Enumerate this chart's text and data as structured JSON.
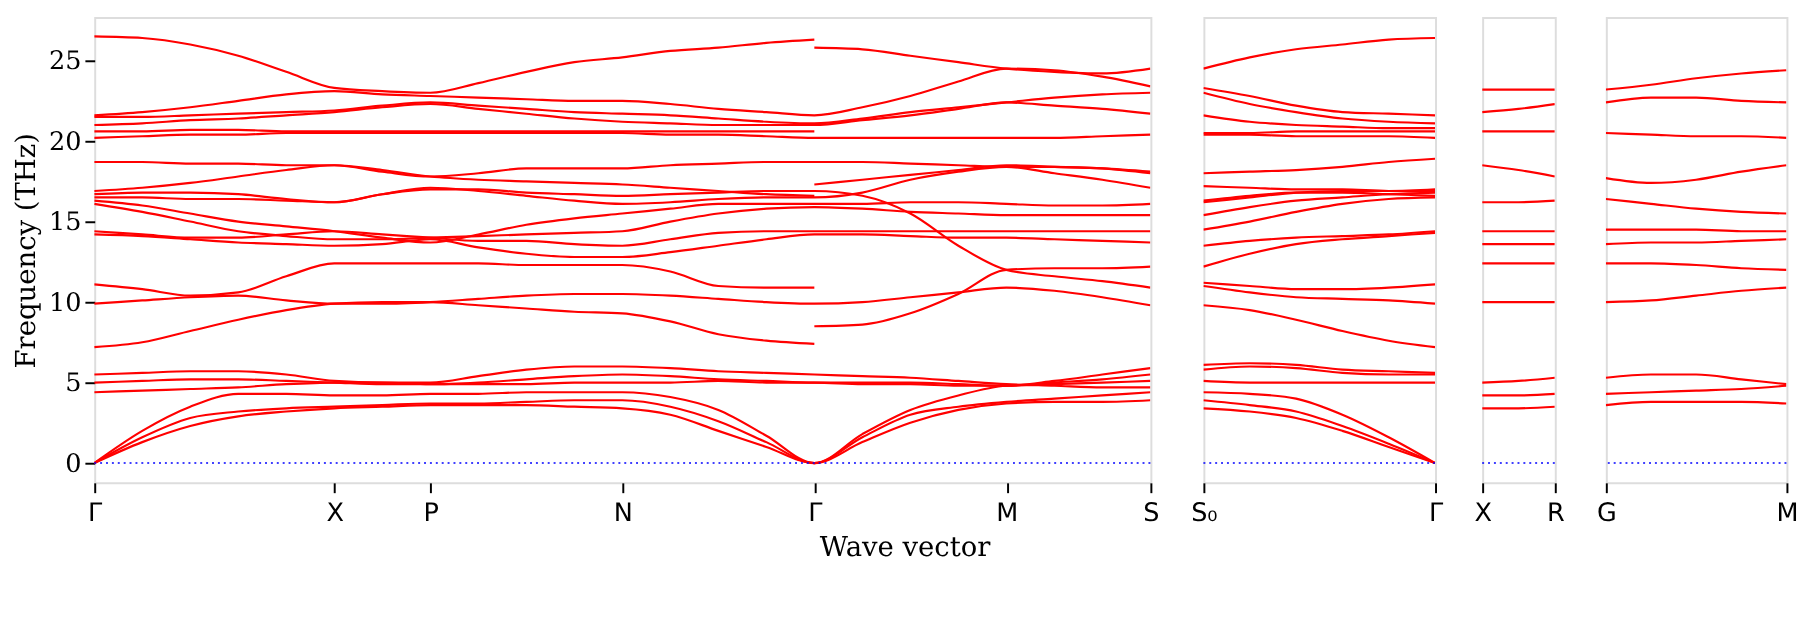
{
  "chart_data": [
    {
      "type": "line",
      "xlabel": "Wave vector",
      "ylabel": "Frequency (THz)",
      "ylim": [
        -1.2,
        27.7
      ],
      "yticks": [
        0,
        5,
        10,
        15,
        20,
        25
      ],
      "categories": [
        "Γ",
        null,
        null,
        null,
        null,
        "X",
        null,
        "P",
        null,
        null,
        null,
        "N",
        null,
        null,
        null,
        "Γ",
        null,
        null,
        null,
        "M",
        null,
        null,
        "S"
      ],
      "ref_lines": [
        {
          "axis": "y",
          "value": 0,
          "color": "#0000ff",
          "line_style": "dotted"
        }
      ],
      "series": [
        {
          "color": "#ff0000",
          "values": [
            0,
            1.3,
            2.3,
            2.9,
            3.2,
            3.4,
            3.5,
            3.6,
            3.6,
            3.6,
            3.5,
            3.4,
            3.0,
            2.0,
            1.0,
            0,
            1.3,
            2.5,
            3.3,
            3.7,
            3.8,
            3.8,
            3.9
          ]
        },
        {
          "color": "#ff0000",
          "values": [
            0,
            1.6,
            2.8,
            3.2,
            3.4,
            3.5,
            3.6,
            3.7,
            3.7,
            3.8,
            3.9,
            3.9,
            3.5,
            2.6,
            1.3,
            0,
            1.6,
            3.0,
            3.5,
            3.8,
            4.0,
            4.2,
            4.4
          ]
        },
        {
          "color": "#ff0000",
          "values": [
            0,
            2.0,
            3.5,
            4.3,
            4.3,
            4.2,
            4.2,
            4.3,
            4.3,
            4.4,
            4.4,
            4.4,
            4.1,
            3.3,
            1.7,
            0,
            1.8,
            3.3,
            4.2,
            4.8,
            4.9,
            5.0,
            5.1
          ]
        },
        {
          "color": "#ff0000",
          "values": [
            4.4,
            4.5,
            4.6,
            4.7,
            4.9,
            5.0,
            5.0,
            4.9,
            4.9,
            4.9,
            5.0,
            5.0,
            5.0,
            5.1,
            5.0,
            5.0,
            4.9,
            4.9,
            4.8,
            4.8,
            5.0,
            5.2,
            5.5
          ]
        },
        {
          "color": "#ff0000",
          "values": [
            5.0,
            5.1,
            5.2,
            5.2,
            5.1,
            5.0,
            4.9,
            4.9,
            5.0,
            5.2,
            5.4,
            5.5,
            5.4,
            5.2,
            5.1,
            5.0,
            5.0,
            5.0,
            4.9,
            4.8,
            5.1,
            5.5,
            5.9
          ]
        },
        {
          "color": "#ff0000",
          "values": [
            5.5,
            5.6,
            5.7,
            5.7,
            5.5,
            5.1,
            5.0,
            5.0,
            5.4,
            5.8,
            6.0,
            6.0,
            5.9,
            5.7,
            5.6,
            5.5,
            5.4,
            5.3,
            5.1,
            4.9,
            4.8,
            4.7,
            4.7
          ]
        },
        {
          "color": "#ff0000",
          "values": [
            7.2,
            7.5,
            8.2,
            8.9,
            9.5,
            9.9,
            10.0,
            10.0,
            9.8,
            9.6,
            9.4,
            9.3,
            8.8,
            8.0,
            7.6,
            7.4,
            null,
            null,
            null,
            null,
            null,
            null,
            null
          ]
        },
        {
          "color": "#ff0000",
          "values": [
            null,
            null,
            null,
            null,
            null,
            null,
            null,
            null,
            null,
            null,
            null,
            null,
            null,
            null,
            null,
            8.5,
            8.6,
            9.3,
            10.5,
            12.0,
            12.1,
            12.1,
            12.2
          ]
        },
        {
          "color": "#ff0000",
          "values": [
            9.9,
            10.1,
            10.3,
            10.4,
            10.1,
            9.9,
            9.9,
            10.0,
            10.2,
            10.4,
            10.5,
            10.5,
            10.4,
            10.2,
            10.0,
            9.9,
            10.0,
            10.3,
            10.6,
            10.9,
            10.7,
            10.3,
            9.8
          ]
        },
        {
          "color": "#ff0000",
          "values": [
            11.1,
            10.8,
            10.4,
            10.6,
            11.6,
            12.4,
            12.4,
            12.4,
            12.4,
            12.3,
            12.3,
            12.3,
            11.9,
            11.0,
            10.9,
            10.9,
            null,
            null,
            null,
            null,
            null,
            null,
            null
          ]
        },
        {
          "color": "#ff0000",
          "values": [
            14.2,
            14.1,
            13.9,
            13.7,
            13.6,
            13.5,
            13.6,
            13.9,
            13.4,
            13.0,
            12.8,
            12.8,
            13.1,
            13.5,
            13.9,
            14.2,
            14.2,
            14.1,
            14.0,
            14.0,
            13.9,
            13.8,
            13.7
          ]
        },
        {
          "color": "#ff0000",
          "values": [
            14.4,
            14.2,
            14.0,
            14.0,
            14.2,
            14.4,
            14.2,
            14.0,
            13.8,
            13.8,
            13.6,
            13.5,
            13.9,
            14.3,
            14.4,
            14.4,
            14.4,
            14.4,
            14.4,
            14.4,
            14.4,
            14.4,
            14.4
          ]
        },
        {
          "color": "#ff0000",
          "values": [
            16.1,
            15.6,
            15.0,
            14.4,
            14.1,
            13.9,
            13.9,
            14.0,
            14.1,
            14.2,
            14.3,
            14.4,
            15.0,
            15.5,
            15.8,
            15.9,
            15.8,
            15.6,
            15.5,
            15.4,
            15.4,
            15.4,
            15.4
          ]
        },
        {
          "color": "#ff0000",
          "values": [
            16.3,
            16.0,
            15.5,
            15.0,
            14.7,
            14.4,
            14.0,
            13.7,
            14.2,
            14.8,
            15.2,
            15.5,
            15.8,
            16.1,
            16.1,
            16.1,
            16.1,
            16.2,
            16.2,
            16.1,
            16.0,
            16.0,
            16.1
          ]
        },
        {
          "color": "#ff0000",
          "values": [
            16.5,
            16.5,
            16.4,
            16.4,
            16.3,
            16.2,
            16.7,
            17.1,
            16.9,
            16.6,
            16.3,
            16.1,
            16.2,
            16.4,
            16.5,
            16.5,
            16.8,
            17.6,
            18.1,
            18.4,
            18.0,
            17.6,
            17.1
          ]
        },
        {
          "color": "#ff0000",
          "values": [
            16.7,
            16.8,
            16.8,
            16.7,
            16.4,
            16.2,
            16.7,
            17.0,
            17.0,
            16.8,
            16.7,
            16.6,
            16.7,
            16.8,
            16.9,
            16.9,
            16.6,
            15.5,
            13.5,
            12.0,
            11.6,
            11.3,
            10.9
          ]
        },
        {
          "color": "#ff0000",
          "values": [
            16.9,
            17.1,
            17.4,
            17.8,
            18.2,
            18.5,
            18.2,
            17.8,
            17.6,
            17.5,
            17.4,
            17.3,
            17.1,
            16.9,
            16.7,
            16.6,
            null,
            null,
            null,
            null,
            null,
            null,
            null
          ]
        },
        {
          "color": "#ff0000",
          "values": [
            null,
            null,
            null,
            null,
            null,
            null,
            null,
            null,
            null,
            null,
            null,
            null,
            null,
            null,
            null,
            17.3,
            17.6,
            17.9,
            18.2,
            18.5,
            18.4,
            18.3,
            18.1
          ]
        },
        {
          "color": "#ff0000",
          "values": [
            18.7,
            18.7,
            18.6,
            18.6,
            18.5,
            18.5,
            18.1,
            17.8,
            18.0,
            18.3,
            18.3,
            18.3,
            18.5,
            18.6,
            18.7,
            18.7,
            18.7,
            18.6,
            18.5,
            18.4,
            18.4,
            18.3,
            18.0
          ]
        },
        {
          "color": "#ff0000",
          "values": [
            20.2,
            20.3,
            20.4,
            20.4,
            20.5,
            20.5,
            20.5,
            20.5,
            20.5,
            20.5,
            20.5,
            20.5,
            20.4,
            20.4,
            20.3,
            20.2,
            20.2,
            20.2,
            20.2,
            20.2,
            20.2,
            20.3,
            20.4
          ]
        },
        {
          "color": "#ff0000",
          "values": [
            20.6,
            20.6,
            20.7,
            20.7,
            20.6,
            20.6,
            20.6,
            20.6,
            20.6,
            20.6,
            20.6,
            20.6,
            20.6,
            20.6,
            20.6,
            20.6,
            null,
            null,
            null,
            null,
            null,
            null,
            null
          ]
        },
        {
          "color": "#ff0000",
          "values": [
            21.0,
            21.1,
            21.3,
            21.4,
            21.6,
            21.8,
            22.1,
            22.3,
            22.0,
            21.7,
            21.4,
            21.2,
            21.1,
            21.0,
            21.0,
            21.0,
            21.3,
            21.6,
            22.0,
            22.4,
            22.2,
            22.0,
            21.7
          ]
        },
        {
          "color": "#ff0000",
          "values": [
            21.5,
            21.5,
            21.6,
            21.7,
            21.8,
            21.9,
            22.2,
            22.4,
            22.2,
            22.0,
            21.8,
            21.7,
            21.6,
            21.4,
            21.2,
            21.1,
            21.4,
            21.8,
            22.1,
            22.4,
            22.7,
            22.9,
            23.0
          ]
        },
        {
          "color": "#ff0000",
          "values": [
            21.6,
            21.8,
            22.1,
            22.5,
            22.9,
            23.1,
            22.9,
            22.8,
            22.7,
            22.6,
            22.5,
            22.5,
            22.3,
            22.0,
            21.8,
            21.6,
            22.1,
            22.8,
            23.7,
            24.5,
            24.4,
            24.0,
            23.4
          ]
        },
        {
          "color": "#ff0000",
          "values": [
            26.5,
            26.4,
            26.0,
            25.3,
            24.3,
            23.3,
            23.1,
            23.0,
            23.6,
            24.3,
            24.9,
            25.2,
            25.6,
            25.8,
            26.1,
            26.3,
            null,
            null,
            null,
            null,
            null,
            null,
            null
          ]
        },
        {
          "color": "#ff0000",
          "values": [
            null,
            null,
            null,
            null,
            null,
            null,
            null,
            null,
            null,
            null,
            null,
            null,
            null,
            null,
            null,
            25.8,
            25.7,
            25.3,
            24.9,
            24.5,
            24.3,
            24.2,
            24.5
          ]
        }
      ]
    },
    {
      "type": "line",
      "tick_labels": "x",
      "ylim": [
        -1.2,
        27.7
      ],
      "categories": [
        "S₀",
        null,
        null,
        null,
        null,
        "Γ"
      ],
      "ref_lines": [
        {
          "axis": "y",
          "value": 0,
          "color": "#0000ff",
          "line_style": "dotted"
        }
      ],
      "series": [
        {
          "color": "#ff0000",
          "values": [
            3.4,
            3.2,
            2.8,
            2.0,
            1.0,
            0
          ]
        },
        {
          "color": "#ff0000",
          "values": [
            3.9,
            3.6,
            3.2,
            2.3,
            1.2,
            0
          ]
        },
        {
          "color": "#ff0000",
          "values": [
            4.4,
            4.3,
            4.0,
            3.0,
            1.6,
            0
          ]
        },
        {
          "color": "#ff0000",
          "values": [
            5.1,
            5.0,
            5.0,
            5.0,
            5.0,
            5.0
          ]
        },
        {
          "color": "#ff0000",
          "values": [
            5.8,
            6.0,
            5.9,
            5.6,
            5.5,
            5.5
          ]
        },
        {
          "color": "#ff0000",
          "values": [
            6.1,
            6.2,
            6.1,
            5.8,
            5.7,
            5.6
          ]
        },
        {
          "color": "#ff0000",
          "values": [
            9.8,
            9.5,
            8.9,
            8.2,
            7.6,
            7.2
          ]
        },
        {
          "color": "#ff0000",
          "values": [
            11.0,
            10.6,
            10.3,
            10.2,
            10.1,
            9.9
          ]
        },
        {
          "color": "#ff0000",
          "values": [
            11.2,
            11.0,
            10.8,
            10.8,
            10.9,
            11.1
          ]
        },
        {
          "color": "#ff0000",
          "values": [
            12.2,
            13.0,
            13.6,
            13.9,
            14.1,
            14.3
          ]
        },
        {
          "color": "#ff0000",
          "values": [
            13.5,
            13.8,
            14.0,
            14.1,
            14.2,
            14.4
          ]
        },
        {
          "color": "#ff0000",
          "values": [
            14.5,
            15.0,
            15.6,
            16.1,
            16.4,
            16.5
          ]
        },
        {
          "color": "#ff0000",
          "values": [
            15.4,
            15.9,
            16.3,
            16.5,
            16.7,
            16.8
          ]
        },
        {
          "color": "#ff0000",
          "values": [
            16.2,
            16.5,
            16.8,
            16.9,
            16.9,
            16.9
          ]
        },
        {
          "color": "#ff0000",
          "values": [
            16.3,
            16.6,
            16.8,
            16.8,
            16.7,
            16.6
          ]
        },
        {
          "color": "#ff0000",
          "values": [
            17.2,
            17.1,
            17.0,
            17.0,
            16.9,
            17.0
          ]
        },
        {
          "color": "#ff0000",
          "values": [
            18.0,
            18.1,
            18.2,
            18.4,
            18.7,
            18.9
          ]
        },
        {
          "color": "#ff0000",
          "values": [
            20.4,
            20.4,
            20.3,
            20.3,
            20.3,
            20.2
          ]
        },
        {
          "color": "#ff0000",
          "values": [
            20.5,
            20.5,
            20.6,
            20.6,
            20.6,
            20.6
          ]
        },
        {
          "color": "#ff0000",
          "values": [
            21.6,
            21.2,
            21.0,
            20.9,
            20.8,
            20.8
          ]
        },
        {
          "color": "#ff0000",
          "values": [
            23.0,
            22.3,
            21.8,
            21.4,
            21.2,
            21.1
          ]
        },
        {
          "color": "#ff0000",
          "values": [
            23.3,
            22.8,
            22.2,
            21.8,
            21.7,
            21.6
          ]
        },
        {
          "color": "#ff0000",
          "values": [
            24.5,
            25.2,
            25.7,
            26.0,
            26.3,
            26.4
          ]
        }
      ]
    },
    {
      "type": "line",
      "tick_labels": "x",
      "ylim": [
        -1.2,
        27.7
      ],
      "categories": [
        "X",
        null,
        "R"
      ],
      "ref_lines": [
        {
          "axis": "y",
          "value": 0,
          "color": "#0000ff",
          "line_style": "dotted"
        }
      ],
      "series": [
        {
          "color": "#ff0000",
          "values": [
            3.4,
            3.4,
            3.5
          ]
        },
        {
          "color": "#ff0000",
          "values": [
            4.2,
            4.2,
            4.3
          ]
        },
        {
          "color": "#ff0000",
          "values": [
            5.0,
            5.1,
            5.3
          ]
        },
        {
          "color": "#ff0000",
          "values": [
            10.0,
            10.0,
            10.0
          ]
        },
        {
          "color": "#ff0000",
          "values": [
            12.4,
            12.4,
            12.4
          ]
        },
        {
          "color": "#ff0000",
          "values": [
            13.6,
            13.6,
            13.6
          ]
        },
        {
          "color": "#ff0000",
          "values": [
            14.4,
            14.4,
            14.4
          ]
        },
        {
          "color": "#ff0000",
          "values": [
            16.2,
            16.2,
            16.3
          ]
        },
        {
          "color": "#ff0000",
          "values": [
            18.5,
            18.2,
            17.8
          ]
        },
        {
          "color": "#ff0000",
          "values": [
            20.6,
            20.6,
            20.6
          ]
        },
        {
          "color": "#ff0000",
          "values": [
            21.8,
            22.0,
            22.3
          ]
        },
        {
          "color": "#ff0000",
          "values": [
            23.2,
            23.2,
            23.2
          ]
        }
      ]
    },
    {
      "type": "line",
      "tick_labels": "x",
      "ylim": [
        -1.2,
        27.7
      ],
      "categories": [
        "G",
        null,
        null,
        null,
        "M"
      ],
      "ref_lines": [
        {
          "axis": "y",
          "value": 0,
          "color": "#0000ff",
          "line_style": "dotted"
        }
      ],
      "series": [
        {
          "color": "#ff0000",
          "values": [
            3.6,
            3.8,
            3.8,
            3.8,
            3.7
          ]
        },
        {
          "color": "#ff0000",
          "values": [
            4.3,
            4.4,
            4.5,
            4.6,
            4.8
          ]
        },
        {
          "color": "#ff0000",
          "values": [
            5.3,
            5.5,
            5.5,
            5.2,
            4.9
          ]
        },
        {
          "color": "#ff0000",
          "values": [
            10.0,
            10.1,
            10.4,
            10.7,
            10.9
          ]
        },
        {
          "color": "#ff0000",
          "values": [
            12.4,
            12.4,
            12.3,
            12.1,
            12.0
          ]
        },
        {
          "color": "#ff0000",
          "values": [
            13.6,
            13.7,
            13.7,
            13.8,
            13.9
          ]
        },
        {
          "color": "#ff0000",
          "values": [
            14.5,
            14.5,
            14.5,
            14.4,
            14.4
          ]
        },
        {
          "color": "#ff0000",
          "values": [
            16.4,
            16.1,
            15.8,
            15.6,
            15.5
          ]
        },
        {
          "color": "#ff0000",
          "values": [
            17.7,
            17.4,
            17.6,
            18.1,
            18.5
          ]
        },
        {
          "color": "#ff0000",
          "values": [
            20.5,
            20.4,
            20.3,
            20.3,
            20.2
          ]
        },
        {
          "color": "#ff0000",
          "values": [
            22.4,
            22.7,
            22.7,
            22.5,
            22.4
          ]
        },
        {
          "color": "#ff0000",
          "values": [
            23.2,
            23.5,
            23.9,
            24.2,
            24.4
          ]
        }
      ]
    }
  ]
}
